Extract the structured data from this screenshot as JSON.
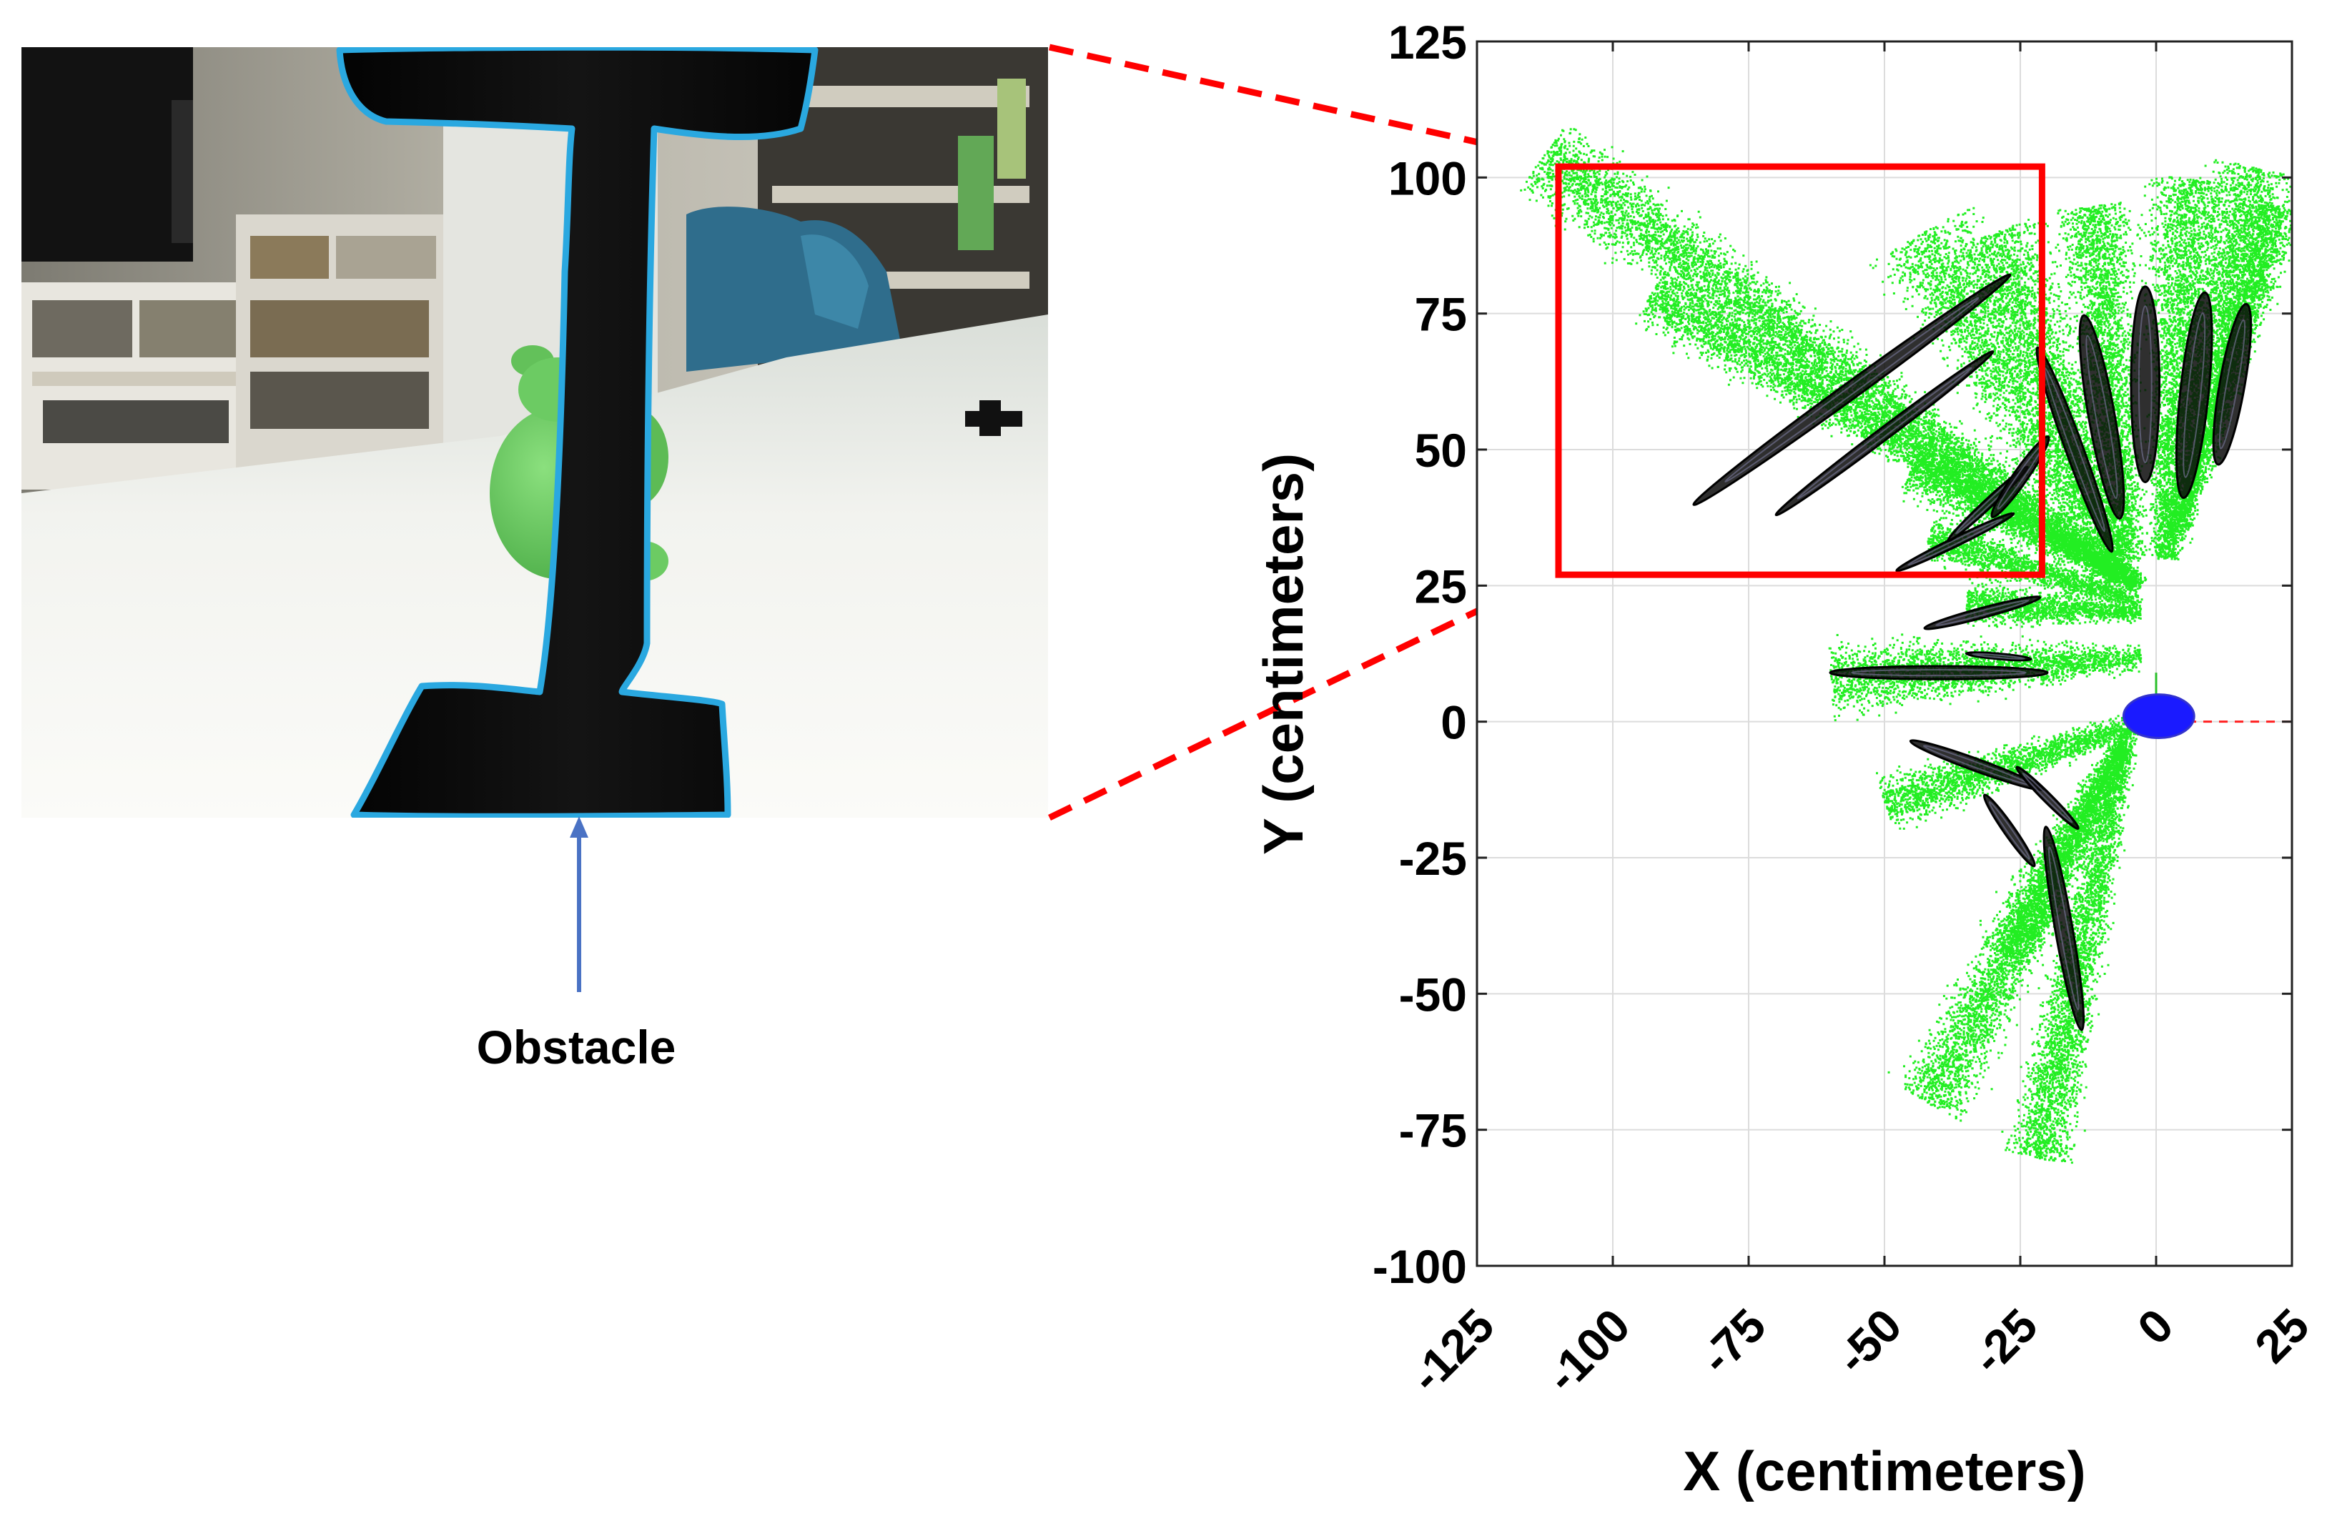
{
  "figure": {
    "photo_label": "Obstacle"
  },
  "chart_data": {
    "type": "scatter",
    "title": "",
    "xlabel": "X (centimeters)",
    "ylabel": "Y (centimeters)",
    "xlim": [
      -125,
      25
    ],
    "ylim": [
      -100,
      125
    ],
    "xticks": [
      -125,
      -100,
      -75,
      -50,
      -25,
      0,
      25
    ],
    "yticks": [
      -100,
      -75,
      -50,
      -25,
      0,
      25,
      50,
      75,
      100,
      125
    ],
    "xtick_labels": [
      "-125",
      "-100",
      "-75",
      "-50",
      "-25",
      "0",
      "25"
    ],
    "ytick_labels": [
      "-100",
      "-75",
      "-50",
      "-25",
      "0",
      "25",
      "50",
      "75",
      "100",
      "125"
    ],
    "grid": true,
    "highlight_region": {
      "x": [
        -110,
        -21
      ],
      "y": [
        27,
        102
      ],
      "color": "#ff0000"
    },
    "colors": {
      "sample_points": "#22ee22",
      "ellipse_outlines": "#000000",
      "robot_marker": "#1a1aff",
      "x_axis_marker": "#ff2020",
      "highlight": "#ff0000",
      "obstacle_outline": "#2aa8e0",
      "pointer_arrow": "#4a72c4"
    },
    "series": [
      {
        "kind": "point-cloud",
        "rays": [
          {
            "start": [
              -3,
              25
            ],
            "end": [
              -113,
              104
            ],
            "spread": 4.5
          },
          {
            "start": [
              -3,
              25
            ],
            "end": [
              -93,
              79
            ],
            "spread": 3.5
          },
          {
            "start": [
              -3,
              25
            ],
            "end": [
              -45,
              47
            ],
            "spread": 3.0
          },
          {
            "start": [
              -3,
              22
            ],
            "end": [
              -42,
              34
            ],
            "spread": 2.5
          },
          {
            "start": [
              -3,
              20
            ],
            "end": [
              -35,
              22
            ],
            "spread": 2.5
          },
          {
            "start": [
              -3,
              12
            ],
            "end": [
              -60,
              8
            ],
            "spread": 4.0
          },
          {
            "start": [
              -3,
              0
            ],
            "end": [
              -50,
              -15
            ],
            "spread": 3.0
          },
          {
            "start": [
              -5,
              -2
            ],
            "end": [
              -28,
              -43
            ],
            "spread": 3.5
          },
          {
            "start": [
              -6,
              -4
            ],
            "end": [
              -42,
              -70
            ],
            "spread": 4.0
          },
          {
            "start": [
              -6,
              -4
            ],
            "end": [
              -22,
              -80
            ],
            "spread": 3.5
          },
          {
            "start": [
              -7,
              26
            ],
            "end": [
              -43,
              90
            ],
            "spread": 6.0
          },
          {
            "start": [
              -6,
              28
            ],
            "end": [
              -30,
              90
            ],
            "spread": 5.0
          },
          {
            "start": [
              -5,
              30
            ],
            "end": [
              -12,
              95
            ],
            "spread": 4.5
          },
          {
            "start": [
              1,
              30
            ],
            "end": [
              6,
              100
            ],
            "spread": 4.5
          },
          {
            "start": [
              2,
              30
            ],
            "end": [
              18,
              102
            ],
            "spread": 4.5
          },
          {
            "start": [
              4,
              35
            ],
            "end": [
              22,
              95
            ],
            "spread": 3.0
          }
        ]
      },
      {
        "kind": "ellipses",
        "items": [
          {
            "cx": -56,
            "cy": 61,
            "a": 36,
            "b": 1.5,
            "angle": -36
          },
          {
            "cx": -50,
            "cy": 53,
            "a": 25,
            "b": 1.1,
            "angle": -37
          },
          {
            "cx": -37,
            "cy": 33,
            "a": 12,
            "b": 0.8,
            "angle": -26
          },
          {
            "cx": -31,
            "cy": 40,
            "a": 10,
            "b": 0.8,
            "angle": -43
          },
          {
            "cx": -25,
            "cy": 45,
            "a": 9,
            "b": 1.3,
            "angle": -55
          },
          {
            "cx": -32,
            "cy": 20,
            "a": 11,
            "b": 0.9,
            "angle": -15
          },
          {
            "cx": -40,
            "cy": 9,
            "a": 20,
            "b": 1.2,
            "angle": 0
          },
          {
            "cx": -29,
            "cy": 12,
            "a": 6,
            "b": 0.5,
            "angle": 5
          },
          {
            "cx": -33,
            "cy": -8,
            "a": 13,
            "b": 1.1,
            "angle": 20
          },
          {
            "cx": -27,
            "cy": -20,
            "a": 8,
            "b": 1.0,
            "angle": 55
          },
          {
            "cx": -20,
            "cy": -14,
            "a": 8,
            "b": 0.8,
            "angle": 45
          },
          {
            "cx": -17,
            "cy": -38,
            "a": 19,
            "b": 1.6,
            "angle": 80
          },
          {
            "cx": -15,
            "cy": 50,
            "a": 20,
            "b": 1.6,
            "angle": -110
          },
          {
            "cx": -10,
            "cy": 56,
            "a": 19,
            "b": 2.4,
            "angle": -100
          },
          {
            "cx": -2,
            "cy": 62,
            "a": 18,
            "b": 2.6,
            "angle": -90
          },
          {
            "cx": 7,
            "cy": 60,
            "a": 19,
            "b": 2.6,
            "angle": -84
          },
          {
            "cx": 14,
            "cy": 62,
            "a": 15,
            "b": 2.3,
            "angle": -80
          }
        ]
      },
      {
        "kind": "robot-marker",
        "x": [
          -6,
          7
        ],
        "y": [
          -3,
          5
        ]
      }
    ]
  }
}
